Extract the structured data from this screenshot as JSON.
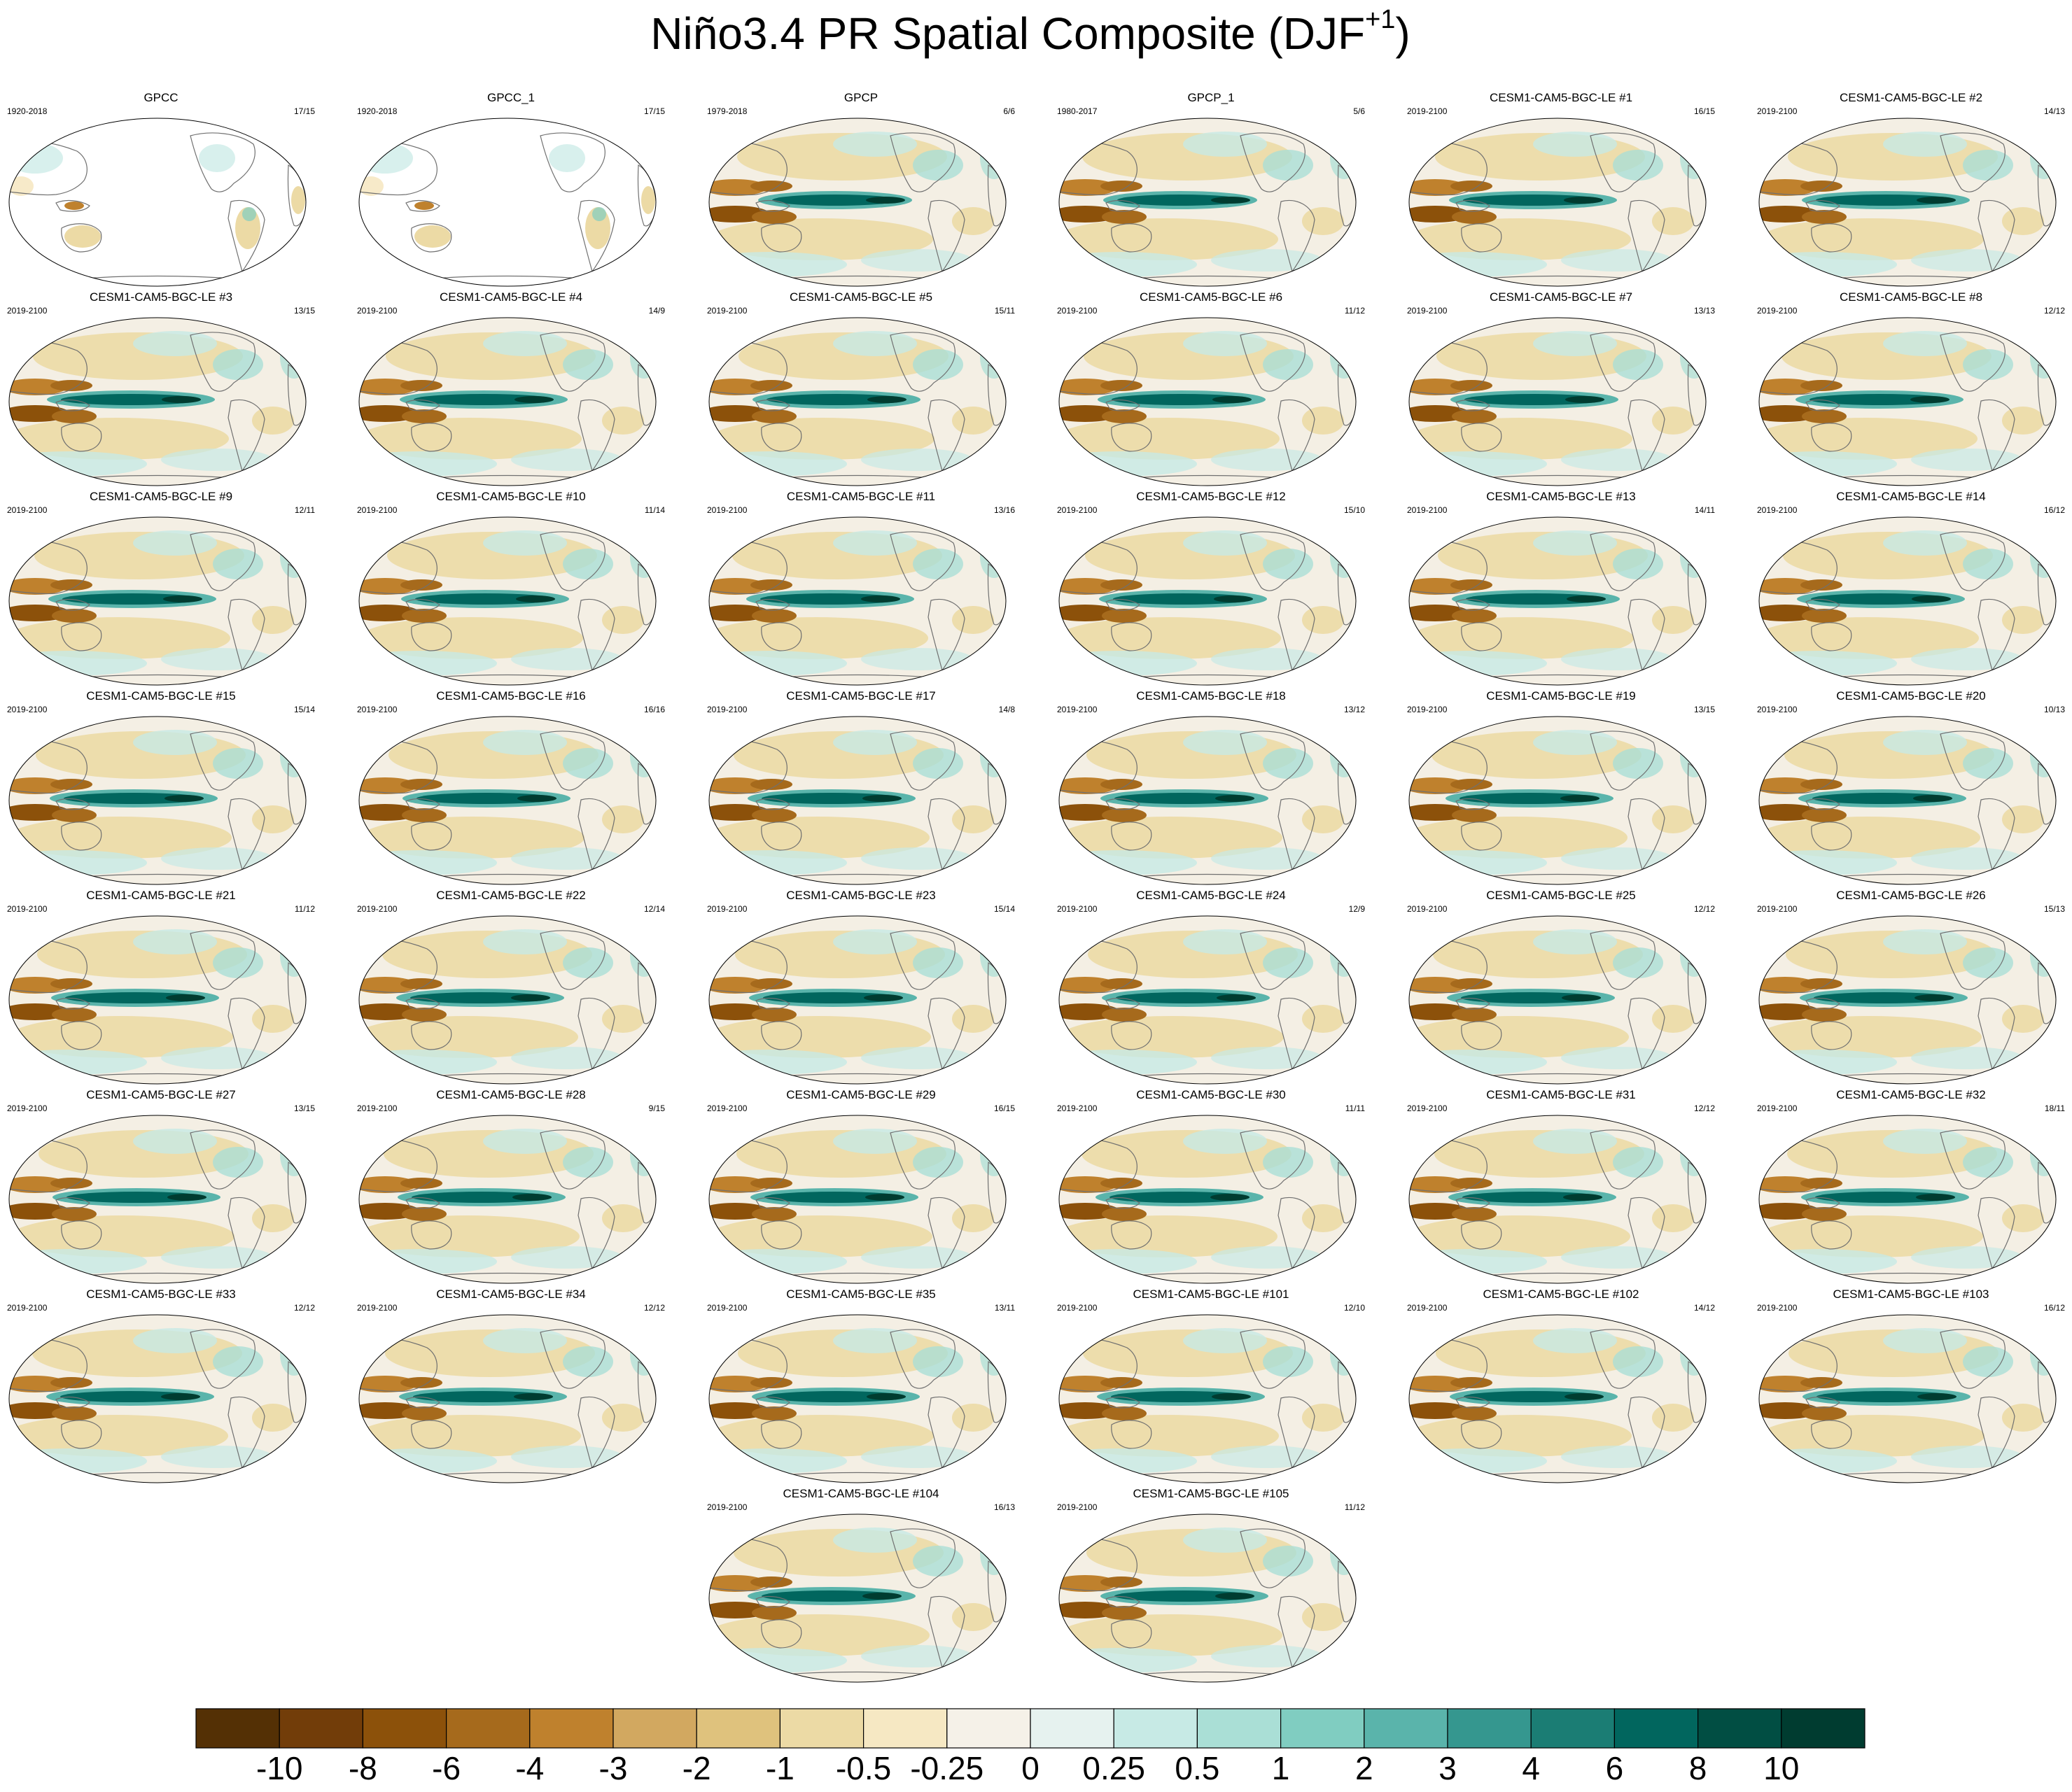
{
  "title": {
    "main": "Niño3.4 PR Spatial Composite (DJF",
    "sup": "+1",
    "close": ")"
  },
  "colors": {
    "palette": [
      "#543005",
      "#723d09",
      "#8c510a",
      "#a66a1c",
      "#bf812d",
      "#d2a860",
      "#dfc27d",
      "#ecdaa5",
      "#f6e8c3",
      "#f5f1e8",
      "#e6f2ef",
      "#c7eae5",
      "#aadfd6",
      "#80cdc1",
      "#5ab4ab",
      "#35978f",
      "#1b7d74",
      "#01665e",
      "#014e43",
      "#003c30"
    ],
    "land_outline": "#707070",
    "ocean_neutral": "#f4efe4"
  },
  "colorbar": {
    "labels": [
      "-10",
      "-8",
      "-6",
      "-4",
      "-3",
      "-2",
      "-1",
      "-0.5",
      "-0.25",
      "0",
      "0.25",
      "0.5",
      "1",
      "2",
      "3",
      "4",
      "6",
      "8",
      "10"
    ]
  },
  "panels": [
    {
      "title": "GPCC",
      "years": "1920-2018",
      "count": "17/15",
      "kind": "obs_land"
    },
    {
      "title": "GPCC_1",
      "years": "1920-2018",
      "count": "17/15",
      "kind": "obs_land"
    },
    {
      "title": "GPCP",
      "years": "1979-2018",
      "count": "6/6",
      "kind": "obs"
    },
    {
      "title": "GPCP_1",
      "years": "1980-2017",
      "count": "5/6",
      "kind": "obs"
    },
    {
      "title": "CESM1-CAM5-BGC-LE #1",
      "years": "2019-2100",
      "count": "16/15",
      "kind": "model"
    },
    {
      "title": "CESM1-CAM5-BGC-LE #2",
      "years": "2019-2100",
      "count": "14/13",
      "kind": "model"
    },
    {
      "title": "CESM1-CAM5-BGC-LE #3",
      "years": "2019-2100",
      "count": "13/15",
      "kind": "model"
    },
    {
      "title": "CESM1-CAM5-BGC-LE #4",
      "years": "2019-2100",
      "count": "14/9",
      "kind": "model"
    },
    {
      "title": "CESM1-CAM5-BGC-LE #5",
      "years": "2019-2100",
      "count": "15/11",
      "kind": "model"
    },
    {
      "title": "CESM1-CAM5-BGC-LE #6",
      "years": "2019-2100",
      "count": "11/12",
      "kind": "model"
    },
    {
      "title": "CESM1-CAM5-BGC-LE #7",
      "years": "2019-2100",
      "count": "13/13",
      "kind": "model"
    },
    {
      "title": "CESM1-CAM5-BGC-LE #8",
      "years": "2019-2100",
      "count": "12/12",
      "kind": "model"
    },
    {
      "title": "CESM1-CAM5-BGC-LE #9",
      "years": "2019-2100",
      "count": "12/11",
      "kind": "model"
    },
    {
      "title": "CESM1-CAM5-BGC-LE #10",
      "years": "2019-2100",
      "count": "11/14",
      "kind": "model"
    },
    {
      "title": "CESM1-CAM5-BGC-LE #11",
      "years": "2019-2100",
      "count": "13/16",
      "kind": "model"
    },
    {
      "title": "CESM1-CAM5-BGC-LE #12",
      "years": "2019-2100",
      "count": "15/10",
      "kind": "model"
    },
    {
      "title": "CESM1-CAM5-BGC-LE #13",
      "years": "2019-2100",
      "count": "14/11",
      "kind": "model"
    },
    {
      "title": "CESM1-CAM5-BGC-LE #14",
      "years": "2019-2100",
      "count": "16/12",
      "kind": "model"
    },
    {
      "title": "CESM1-CAM5-BGC-LE #15",
      "years": "2019-2100",
      "count": "15/14",
      "kind": "model"
    },
    {
      "title": "CESM1-CAM5-BGC-LE #16",
      "years": "2019-2100",
      "count": "16/16",
      "kind": "model"
    },
    {
      "title": "CESM1-CAM5-BGC-LE #17",
      "years": "2019-2100",
      "count": "14/8",
      "kind": "model"
    },
    {
      "title": "CESM1-CAM5-BGC-LE #18",
      "years": "2019-2100",
      "count": "13/12",
      "kind": "model"
    },
    {
      "title": "CESM1-CAM5-BGC-LE #19",
      "years": "2019-2100",
      "count": "13/15",
      "kind": "model"
    },
    {
      "title": "CESM1-CAM5-BGC-LE #20",
      "years": "2019-2100",
      "count": "10/13",
      "kind": "model"
    },
    {
      "title": "CESM1-CAM5-BGC-LE #21",
      "years": "2019-2100",
      "count": "11/12",
      "kind": "model"
    },
    {
      "title": "CESM1-CAM5-BGC-LE #22",
      "years": "2019-2100",
      "count": "12/14",
      "kind": "model"
    },
    {
      "title": "CESM1-CAM5-BGC-LE #23",
      "years": "2019-2100",
      "count": "15/14",
      "kind": "model"
    },
    {
      "title": "CESM1-CAM5-BGC-LE #24",
      "years": "2019-2100",
      "count": "12/9",
      "kind": "model"
    },
    {
      "title": "CESM1-CAM5-BGC-LE #25",
      "years": "2019-2100",
      "count": "12/12",
      "kind": "model"
    },
    {
      "title": "CESM1-CAM5-BGC-LE #26",
      "years": "2019-2100",
      "count": "15/13",
      "kind": "model"
    },
    {
      "title": "CESM1-CAM5-BGC-LE #27",
      "years": "2019-2100",
      "count": "13/15",
      "kind": "model"
    },
    {
      "title": "CESM1-CAM5-BGC-LE #28",
      "years": "2019-2100",
      "count": "9/15",
      "kind": "model"
    },
    {
      "title": "CESM1-CAM5-BGC-LE #29",
      "years": "2019-2100",
      "count": "16/15",
      "kind": "model"
    },
    {
      "title": "CESM1-CAM5-BGC-LE #30",
      "years": "2019-2100",
      "count": "11/11",
      "kind": "model"
    },
    {
      "title": "CESM1-CAM5-BGC-LE #31",
      "years": "2019-2100",
      "count": "12/12",
      "kind": "model"
    },
    {
      "title": "CESM1-CAM5-BGC-LE #32",
      "years": "2019-2100",
      "count": "18/11",
      "kind": "model"
    },
    {
      "title": "CESM1-CAM5-BGC-LE #33",
      "years": "2019-2100",
      "count": "12/12",
      "kind": "model"
    },
    {
      "title": "CESM1-CAM5-BGC-LE #34",
      "years": "2019-2100",
      "count": "12/12",
      "kind": "model"
    },
    {
      "title": "CESM1-CAM5-BGC-LE #35",
      "years": "2019-2100",
      "count": "13/11",
      "kind": "model"
    },
    {
      "title": "CESM1-CAM5-BGC-LE #101",
      "years": "2019-2100",
      "count": "12/10",
      "kind": "model"
    },
    {
      "title": "CESM1-CAM5-BGC-LE #102",
      "years": "2019-2100",
      "count": "14/12",
      "kind": "model"
    },
    {
      "title": "CESM1-CAM5-BGC-LE #103",
      "years": "2019-2100",
      "count": "16/12",
      "kind": "model"
    },
    {
      "title": "CESM1-CAM5-BGC-LE #104",
      "years": "2019-2100",
      "count": "16/13",
      "kind": "model"
    },
    {
      "title": "CESM1-CAM5-BGC-LE #105",
      "years": "2019-2100",
      "count": "11/12",
      "kind": "model"
    }
  ]
}
